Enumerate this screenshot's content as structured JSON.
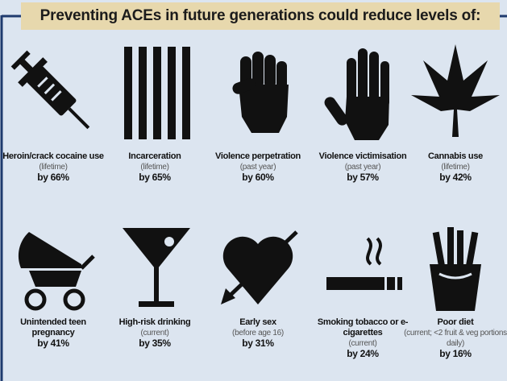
{
  "header": {
    "title": "Preventing ACEs in future generations could reduce levels of:"
  },
  "items": [
    {
      "label": "Heroin/crack cocaine use",
      "note": "(lifetime)",
      "value": "by 66%"
    },
    {
      "label": "Incarceration",
      "note": "(lifetime)",
      "value": "by 65%"
    },
    {
      "label": "Violence perpetration",
      "note": "(past year)",
      "value": "by 60%"
    },
    {
      "label": "Violence victimisation",
      "note": "(past year)",
      "value": "by 57%"
    },
    {
      "label": "Cannabis use",
      "note": "(lifetime)",
      "value": "by 42%"
    },
    {
      "label": "Unintended teen pregnancy",
      "value": "by 41%"
    },
    {
      "label": "High-risk drinking",
      "note": "(current)",
      "value": "by 35%"
    },
    {
      "label": "Early sex",
      "note": "(before age 16)",
      "value": "by 31%"
    },
    {
      "label": "Smoking tobacco or e-cigarettes",
      "note": "(current)",
      "value": "by 24%"
    },
    {
      "label": "Poor diet",
      "note": "(current; <2 fruit & veg portions daily)",
      "value": "by 16%"
    }
  ]
}
